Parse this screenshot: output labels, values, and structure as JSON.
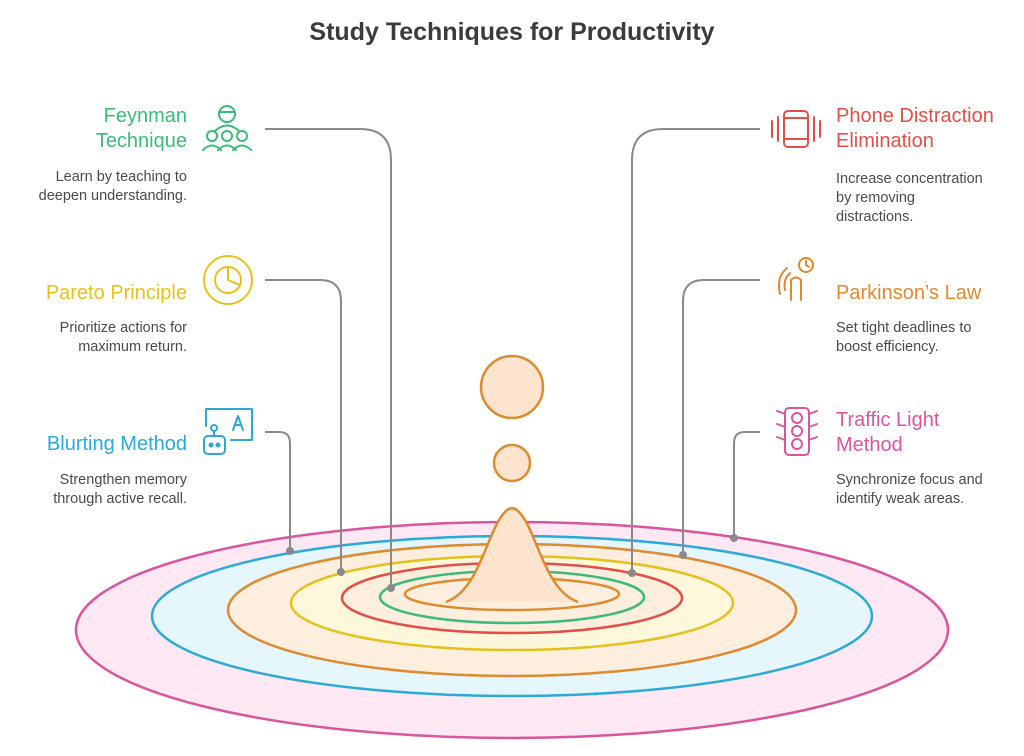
{
  "title": "Study Techniques for Productivity",
  "colors": {
    "feynman": "#3dbb7a",
    "pareto": "#e5c21b",
    "blurting": "#2ca9d6",
    "phone": "#e0504b",
    "parkinson": "#dd8a30",
    "traffic": "#d9569f",
    "connector": "#8a8a8a"
  },
  "techniques": {
    "feynman": {
      "title_line1": "Feynman",
      "title_line2": "Technique",
      "desc_line1": "Learn by teaching to",
      "desc_line2": "deepen understanding.",
      "icon": "group-teaching-icon"
    },
    "pareto": {
      "title": "Pareto Principle",
      "desc_line1": "Prioritize actions for",
      "desc_line2": "maximum return.",
      "icon": "pie-chart-icon"
    },
    "blurting": {
      "title": "Blurting Method",
      "desc_line1": "Strengthen memory",
      "desc_line2": "through active recall.",
      "icon": "robot-text-icon"
    },
    "phone": {
      "title_line1": "Phone Distraction",
      "title_line2": "Elimination",
      "desc_line1": "Increase concentration",
      "desc_line2": "by removing",
      "desc_line3": "distractions.",
      "icon": "vibrating-phone-icon"
    },
    "parkinson": {
      "title": "Parkinson’s Law",
      "desc_line1": "Set tight deadlines to",
      "desc_line2": "boost efficiency.",
      "icon": "touch-timer-icon"
    },
    "traffic": {
      "title_line1": "Traffic Light",
      "title_line2": "Method",
      "desc_line1": "Synchronize focus and",
      "desc_line2": "identify weak areas.",
      "icon": "traffic-light-icon"
    }
  }
}
